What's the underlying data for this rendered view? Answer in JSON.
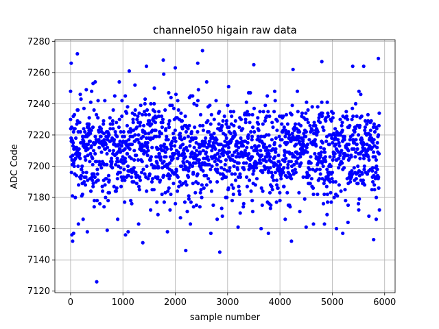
{
  "chart_data": {
    "type": "scatter",
    "title": "channel050 higain raw data",
    "xlabel": "sample number",
    "ylabel": "ADC Code",
    "xlim": [
      -300,
      6200
    ],
    "ylim": [
      7119,
      7281
    ],
    "x_ticks": [
      0,
      1000,
      2000,
      3000,
      4000,
      5000,
      6000
    ],
    "y_ticks": [
      7120,
      7140,
      7160,
      7180,
      7200,
      7220,
      7240,
      7260,
      7280
    ],
    "grid": true,
    "marker_color": "#0000ff",
    "series": [
      {
        "values": [
          [
            0,
            7248
          ],
          [
            12,
            7266
          ],
          [
            25,
            7156
          ],
          [
            40,
            7152
          ],
          [
            58,
            7157
          ],
          [
            130,
            7272
          ],
          [
            150,
            7163
          ],
          [
            240,
            7166
          ],
          [
            300,
            7249
          ],
          [
            320,
            7158
          ],
          [
            430,
            7253
          ],
          [
            470,
            7254
          ],
          [
            500,
            7126
          ],
          [
            560,
            7176
          ],
          [
            640,
            7174
          ],
          [
            700,
            7159
          ],
          [
            900,
            7166
          ],
          [
            930,
            7254
          ],
          [
            1050,
            7156
          ],
          [
            1100,
            7158
          ],
          [
            1120,
            7261
          ],
          [
            1150,
            7178
          ],
          [
            1230,
            7252
          ],
          [
            1300,
            7163
          ],
          [
            1380,
            7151
          ],
          [
            1450,
            7264
          ],
          [
            1530,
            7172
          ],
          [
            1600,
            7250
          ],
          [
            1670,
            7169
          ],
          [
            1770,
            7268
          ],
          [
            1780,
            7259
          ],
          [
            1850,
            7158
          ],
          [
            1900,
            7172
          ],
          [
            2000,
            7263
          ],
          [
            2100,
            7167
          ],
          [
            2200,
            7146
          ],
          [
            2290,
            7163
          ],
          [
            2350,
            7174
          ],
          [
            2430,
            7266
          ],
          [
            2470,
            7174
          ],
          [
            2520,
            7274
          ],
          [
            2600,
            7254
          ],
          [
            2680,
            7157
          ],
          [
            2800,
            7166
          ],
          [
            2850,
            7145
          ],
          [
            2900,
            7168
          ],
          [
            3020,
            7251
          ],
          [
            3200,
            7161
          ],
          [
            3300,
            7174
          ],
          [
            3470,
            7178
          ],
          [
            3500,
            7265
          ],
          [
            3640,
            7160
          ],
          [
            3780,
            7157
          ],
          [
            3900,
            7248
          ],
          [
            4000,
            7178
          ],
          [
            4100,
            7166
          ],
          [
            4180,
            7175
          ],
          [
            4220,
            7152
          ],
          [
            4250,
            7262
          ],
          [
            4380,
            7171
          ],
          [
            4500,
            7161
          ],
          [
            4640,
            7163
          ],
          [
            4800,
            7267
          ],
          [
            4850,
            7163
          ],
          [
            4900,
            7169
          ],
          [
            5080,
            7160
          ],
          [
            5200,
            7157
          ],
          [
            5300,
            7164
          ],
          [
            5390,
            7264
          ],
          [
            5500,
            7176
          ],
          [
            5600,
            7264
          ],
          [
            5700,
            7168
          ],
          [
            5790,
            7153
          ],
          [
            5840,
            7166
          ],
          [
            5880,
            7269
          ],
          [
            5900,
            7172
          ]
        ]
      }
    ],
    "dense_band": {
      "x_range": [
        0,
        5900
      ],
      "core_range": [
        7175,
        7245
      ],
      "center": 7210
    }
  }
}
